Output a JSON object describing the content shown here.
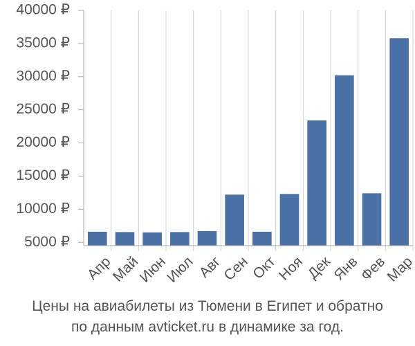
{
  "chart_data": {
    "type": "bar",
    "categories": [
      "Апр",
      "Май",
      "Июн",
      "Июл",
      "Авг",
      "Сен",
      "Окт",
      "Ноя",
      "Дек",
      "Янв",
      "Фев",
      "Мар"
    ],
    "values": [
      6600,
      6550,
      6500,
      6550,
      6700,
      12200,
      6600,
      12300,
      23400,
      30200,
      12400,
      35800
    ],
    "ylim": [
      4500,
      40000
    ],
    "yticks": [
      5000,
      10000,
      15000,
      20000,
      25000,
      30000,
      35000,
      40000
    ],
    "ytick_labels": [
      "5000 ₽",
      "10000 ₽",
      "15000 ₽",
      "20000 ₽",
      "25000 ₽",
      "30000 ₽",
      "35000 ₽",
      "40000 ₽"
    ],
    "grid": "vertical",
    "bar_color": "#4a72a6",
    "grid_color": "#d0d0d0",
    "axis_color": "#aaaaaa",
    "text_color": "#555555"
  },
  "caption": {
    "line1": "Цены на авиабилеты из Тюмени в Египет и обратно",
    "line2": "по данным avticket.ru в динамике за год."
  }
}
